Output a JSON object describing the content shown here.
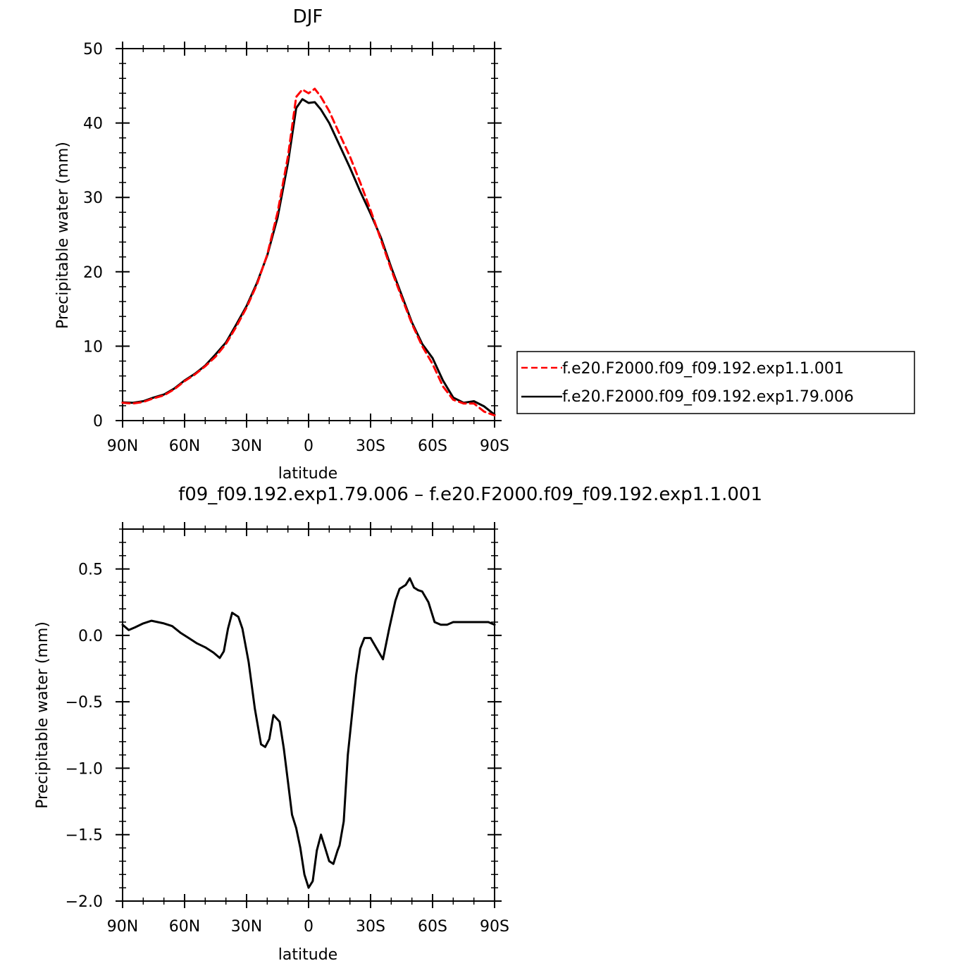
{
  "chart_data": [
    {
      "type": "line",
      "title": "DJF",
      "xlabel": "latitude",
      "ylabel": "Precipitable water (mm)",
      "xlim": [
        -90,
        90
      ],
      "ylim": [
        0,
        50
      ],
      "x_ticks": [
        {
          "value": -90,
          "label": "90N"
        },
        {
          "value": -60,
          "label": "60N"
        },
        {
          "value": -30,
          "label": "30N"
        },
        {
          "value": 0,
          "label": "0"
        },
        {
          "value": 30,
          "label": "30S"
        },
        {
          "value": 60,
          "label": "60S"
        },
        {
          "value": 90,
          "label": "90S"
        }
      ],
      "y_ticks": [
        {
          "value": 0,
          "label": "0"
        },
        {
          "value": 10,
          "label": "10"
        },
        {
          "value": 20,
          "label": "20"
        },
        {
          "value": 30,
          "label": "30"
        },
        {
          "value": 40,
          "label": "40"
        },
        {
          "value": 50,
          "label": "50"
        }
      ],
      "grid": false,
      "legend": {
        "placement": "right-bottom outside"
      },
      "series": [
        {
          "name": "f.e20.F2000.f09_f09.192.exp1.1.001",
          "color": "#ff0000",
          "dash": "dashed",
          "x": [
            -90,
            -85,
            -80,
            -75,
            -70,
            -65,
            -60,
            -55,
            -50,
            -45,
            -40,
            -35,
            -30,
            -25,
            -20,
            -15,
            -10,
            -6,
            -3,
            0,
            3,
            6,
            10,
            15,
            20,
            25,
            30,
            35,
            40,
            45,
            50,
            55,
            60,
            65,
            70,
            75,
            80,
            85,
            90
          ],
          "y": [
            2.4,
            2.3,
            2.5,
            3.0,
            3.4,
            4.2,
            5.3,
            6.2,
            7.3,
            8.6,
            10.3,
            12.6,
            15.2,
            18.3,
            22.3,
            28.0,
            35.5,
            43.5,
            44.5,
            44.0,
            44.6,
            43.5,
            41.6,
            38.5,
            35.5,
            32.0,
            28.3,
            24.3,
            20.3,
            16.6,
            13.0,
            10.0,
            7.6,
            4.6,
            2.8,
            2.3,
            2.3,
            1.2,
            0.7
          ]
        },
        {
          "name": "f.e20.F2000.f09_f09.192.exp1.79.006",
          "color": "#000000",
          "dash": "solid",
          "x": [
            -90,
            -85,
            -80,
            -75,
            -70,
            -65,
            -60,
            -55,
            -50,
            -45,
            -40,
            -35,
            -30,
            -25,
            -20,
            -15,
            -10,
            -6,
            -3,
            0,
            3,
            6,
            10,
            15,
            20,
            25,
            30,
            35,
            40,
            45,
            50,
            55,
            60,
            65,
            70,
            75,
            80,
            85,
            90
          ],
          "y": [
            2.45,
            2.4,
            2.6,
            3.1,
            3.5,
            4.3,
            5.4,
            6.3,
            7.4,
            8.9,
            10.5,
            12.9,
            15.4,
            18.5,
            22.2,
            27.3,
            34.6,
            42.0,
            43.2,
            42.7,
            42.8,
            41.8,
            40.0,
            37.0,
            34.0,
            30.8,
            27.8,
            24.6,
            20.6,
            16.9,
            13.2,
            10.3,
            8.4,
            5.4,
            3.1,
            2.4,
            2.6,
            1.9,
            0.8
          ]
        }
      ]
    },
    {
      "type": "line",
      "title": "f09_f09.192.exp1.79.006 – f.e20.F2000.f09_f09.192.exp1.1.001",
      "xlabel": "latitude",
      "ylabel": "Precipitable water (mm)",
      "xlim": [
        -90,
        90
      ],
      "ylim": [
        -2.0,
        0.8
      ],
      "x_ticks": [
        {
          "value": -90,
          "label": "90N"
        },
        {
          "value": -60,
          "label": "60N"
        },
        {
          "value": -30,
          "label": "30N"
        },
        {
          "value": 0,
          "label": "0"
        },
        {
          "value": 30,
          "label": "30S"
        },
        {
          "value": 60,
          "label": "60S"
        },
        {
          "value": 90,
          "label": "90S"
        }
      ],
      "y_ticks": [
        {
          "value": -2.0,
          "label": "−2.0"
        },
        {
          "value": -1.5,
          "label": "−1.5"
        },
        {
          "value": -1.0,
          "label": "−1.0"
        },
        {
          "value": -0.5,
          "label": "−0.5"
        },
        {
          "value": 0.0,
          "label": "0.0"
        },
        {
          "value": 0.5,
          "label": "0.5"
        }
      ],
      "grid": false,
      "series": [
        {
          "color": "#000000",
          "dash": "solid",
          "x": [
            -90,
            -87,
            -84,
            -80,
            -76,
            -73,
            -70,
            -66,
            -62,
            -58,
            -54,
            -50,
            -46,
            -43,
            -41,
            -39,
            -37,
            -34,
            -32,
            -29,
            -26,
            -23,
            -21,
            -19,
            -17,
            -14,
            -12,
            -10,
            -8,
            -6,
            -4,
            -2,
            0,
            2,
            4,
            6,
            8,
            10,
            12,
            14,
            15,
            17,
            19,
            21,
            23,
            25,
            27,
            30,
            33,
            36,
            39,
            42,
            44,
            47,
            49,
            51,
            53,
            55,
            58,
            61,
            64,
            67,
            70,
            72,
            74,
            78,
            81,
            84,
            87,
            90
          ],
          "y": [
            0.08,
            0.04,
            0.06,
            0.09,
            0.11,
            0.1,
            0.09,
            0.07,
            0.02,
            -0.02,
            -0.06,
            -0.09,
            -0.13,
            -0.17,
            -0.12,
            0.05,
            0.17,
            0.14,
            0.05,
            -0.2,
            -0.55,
            -0.82,
            -0.84,
            -0.78,
            -0.6,
            -0.65,
            -0.85,
            -1.1,
            -1.35,
            -1.45,
            -1.6,
            -1.8,
            -1.9,
            -1.85,
            -1.62,
            -1.5,
            -1.6,
            -1.7,
            -1.72,
            -1.62,
            -1.58,
            -1.4,
            -0.9,
            -0.6,
            -0.3,
            -0.1,
            -0.02,
            -0.02,
            -0.1,
            -0.18,
            0.05,
            0.26,
            0.35,
            0.38,
            0.43,
            0.36,
            0.34,
            0.33,
            0.25,
            0.1,
            0.08,
            0.08,
            0.1,
            0.1,
            0.1,
            0.1,
            0.1,
            0.1,
            0.1,
            0.08
          ]
        }
      ]
    }
  ]
}
